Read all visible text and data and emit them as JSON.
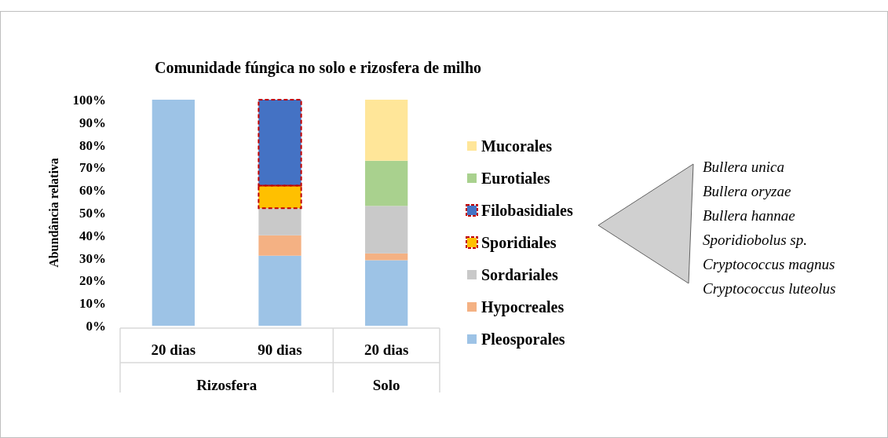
{
  "chart_data": {
    "type": "bar",
    "stacked": true,
    "title": "Comunidade fúngica no solo e rizosfera de milho",
    "ylabel": "Abundância relativa",
    "categories": [
      "20 dias",
      "90 dias",
      "20 dias"
    ],
    "series": [
      {
        "name": "Pleosporales",
        "color": "#9dc3e6",
        "values": [
          100,
          31,
          29
        ]
      },
      {
        "name": "Hypocreales",
        "color": "#f4b183",
        "values": [
          0,
          9,
          3
        ]
      },
      {
        "name": "Sordariales",
        "color": "#c9c9c9",
        "values": [
          0,
          12,
          21
        ]
      },
      {
        "name": "Sporidiales",
        "color": "#ffc000",
        "values": [
          0,
          10,
          0
        ]
      },
      {
        "name": "Filobasidiales",
        "color": "#4472c4",
        "values": [
          0,
          38,
          0
        ]
      },
      {
        "name": "Eurotiales",
        "color": "#a9d18e",
        "values": [
          0,
          0,
          20
        ]
      },
      {
        "name": "Mucorales",
        "color": "#ffe699",
        "values": [
          0,
          0,
          27
        ]
      }
    ],
    "ylim": [
      0,
      100
    ],
    "yticks": [
      {
        "value": 0,
        "label": "0%"
      },
      {
        "value": 10,
        "label": "10%"
      },
      {
        "value": 20,
        "label": "20%"
      },
      {
        "value": 30,
        "label": "30%"
      },
      {
        "value": 40,
        "label": "40%"
      },
      {
        "value": 50,
        "label": "50%"
      },
      {
        "value": 60,
        "label": "60%"
      },
      {
        "value": 70,
        "label": "70%"
      },
      {
        "value": 80,
        "label": "80%"
      },
      {
        "value": 90,
        "label": "90%"
      },
      {
        "value": 100,
        "label": "100%"
      }
    ],
    "legend": "right",
    "annotations": [
      "Rizosfera",
      "Solo",
      "Bullera unica",
      "Bullera oryzae",
      "Bullera hannae",
      "Sporidiobolus sp.",
      "Cryptococcus magnus",
      "Cryptococcus luteolus"
    ]
  }
}
